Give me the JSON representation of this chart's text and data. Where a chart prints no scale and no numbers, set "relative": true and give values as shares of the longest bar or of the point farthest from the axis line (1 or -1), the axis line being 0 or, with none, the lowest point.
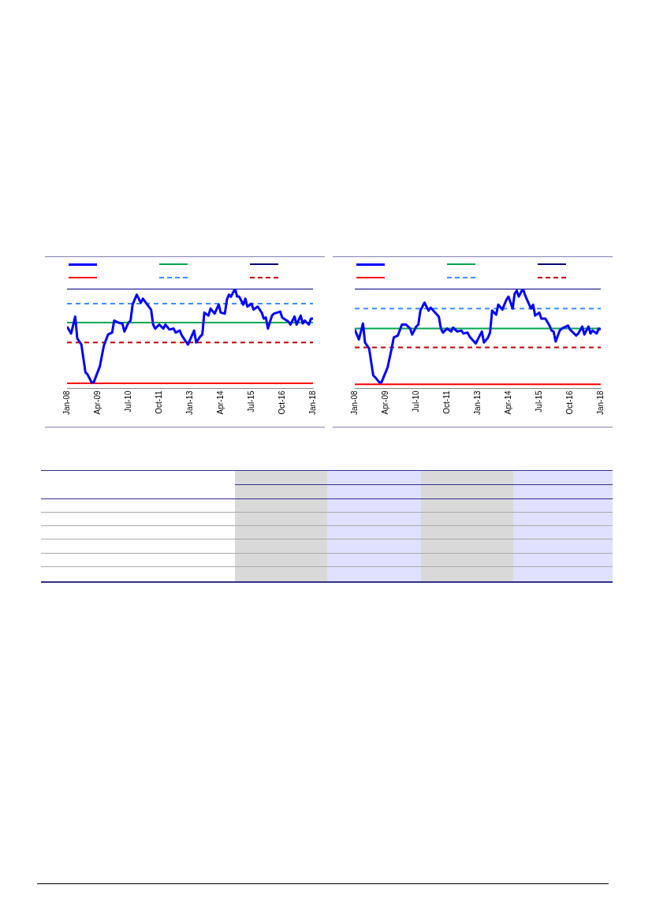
{
  "chart_data": [
    {
      "type": "line",
      "relative": true,
      "grid": false,
      "marker": "none",
      "xlim": [
        "2008-01",
        "2018-01"
      ],
      "xticks": [
        {
          "value": "2008-01",
          "label": "Jan-08"
        },
        {
          "value": "2009-04",
          "label": "Apr-09"
        },
        {
          "value": "2010-07",
          "label": "Jul-10"
        },
        {
          "value": "2011-10",
          "label": "Oct-11"
        },
        {
          "value": "2013-01",
          "label": "Jan-13"
        },
        {
          "value": "2014-04",
          "label": "Apr-14"
        },
        {
          "value": "2015-07",
          "label": "Jul-15"
        },
        {
          "value": "2016-10",
          "label": "Oct-16"
        },
        {
          "value": "2018-01",
          "label": "Jan-18"
        }
      ],
      "series": [
        {
          "color": "#0000ff",
          "line_style": "solid",
          "x": [
            "2008-01",
            "2008-03",
            "2008-05",
            "2008-06",
            "2008-08",
            "2008-10",
            "2008-11",
            "2009-01",
            "2009-02",
            "2009-05",
            "2009-07",
            "2009-09",
            "2009-11",
            "2009-12",
            "2010-02",
            "2010-04",
            "2010-05",
            "2010-07",
            "2010-08",
            "2010-09",
            "2010-11",
            "2011-01",
            "2011-02",
            "2011-06",
            "2011-07",
            "2011-08",
            "2011-10",
            "2011-12",
            "2012-01",
            "2012-03",
            "2012-05",
            "2012-06",
            "2012-08",
            "2012-09",
            "2012-12",
            "2013-03",
            "2013-04",
            "2013-06",
            "2013-07",
            "2013-08",
            "2013-10",
            "2013-11",
            "2014-01",
            "2014-03",
            "2014-04",
            "2014-06",
            "2014-07",
            "2014-08",
            "2014-09",
            "2014-11",
            "2014-12",
            "2015-01",
            "2015-03",
            "2015-04",
            "2015-05",
            "2015-07",
            "2015-08",
            "2015-10",
            "2015-12",
            "2016-01",
            "2016-02",
            "2016-03",
            "2016-05",
            "2016-06",
            "2016-09",
            "2016-10",
            "2017-01",
            "2017-02",
            "2017-04",
            "2017-05",
            "2017-07",
            "2017-08",
            "2017-09",
            "2017-11",
            "2017-12",
            "2018-01"
          ],
          "values": [
            0.62,
            0.55,
            0.72,
            0.5,
            0.44,
            0.16,
            0.14,
            0.06,
            0.06,
            0.22,
            0.43,
            0.54,
            0.56,
            0.68,
            0.66,
            0.65,
            0.57,
            0.66,
            0.68,
            0.84,
            0.94,
            0.86,
            0.9,
            0.79,
            0.64,
            0.6,
            0.64,
            0.6,
            0.64,
            0.59,
            0.6,
            0.56,
            0.58,
            0.53,
            0.44,
            0.58,
            0.46,
            0.52,
            0.54,
            0.76,
            0.73,
            0.8,
            0.75,
            0.84,
            0.76,
            0.75,
            0.89,
            0.94,
            0.92,
            1.0,
            0.92,
            0.92,
            0.84,
            0.9,
            0.82,
            0.85,
            0.79,
            0.82,
            0.76,
            0.7,
            0.71,
            0.6,
            0.73,
            0.75,
            0.77,
            0.71,
            0.67,
            0.64,
            0.72,
            0.64,
            0.73,
            0.65,
            0.68,
            0.64,
            0.7,
            0.7
          ]
        },
        {
          "color": "#00a650",
          "line_style": "solid",
          "x": [
            "2008-01",
            "2018-01"
          ],
          "values": [
            0.66,
            0.66
          ]
        },
        {
          "color": "#000080",
          "line_style": "solid",
          "x": [
            "2008-01",
            "2018-01"
          ],
          "values": [
            1.0,
            1.0
          ]
        },
        {
          "color": "#ff0000",
          "line_style": "solid",
          "x": [
            "2008-01",
            "2018-01"
          ],
          "values": [
            0.05,
            0.05
          ]
        },
        {
          "color": "#3b8eff",
          "line_style": "dashed",
          "x": [
            "2008-01",
            "2018-01"
          ],
          "values": [
            0.85,
            0.85
          ]
        },
        {
          "color": "#c00000",
          "line_style": "dashed",
          "x": [
            "2008-01",
            "2018-01"
          ],
          "values": [
            0.46,
            0.46
          ]
        }
      ]
    },
    {
      "type": "line",
      "relative": true,
      "grid": false,
      "marker": "none",
      "xlim": [
        "2008-01",
        "2018-01"
      ],
      "xticks": [
        {
          "value": "2008-01",
          "label": "Jan-08"
        },
        {
          "value": "2009-04",
          "label": "Apr-09"
        },
        {
          "value": "2010-07",
          "label": "Jul-10"
        },
        {
          "value": "2011-10",
          "label": "Oct-11"
        },
        {
          "value": "2013-01",
          "label": "Jan-13"
        },
        {
          "value": "2014-04",
          "label": "Apr-14"
        },
        {
          "value": "2015-07",
          "label": "Jul-15"
        },
        {
          "value": "2016-10",
          "label": "Oct-16"
        },
        {
          "value": "2018-01",
          "label": "Jan-18"
        }
      ],
      "series": [
        {
          "color": "#0000ff",
          "line_style": "solid",
          "x": [
            "2008-01",
            "2008-03",
            "2008-05",
            "2008-06",
            "2008-08",
            "2008-10",
            "2008-11",
            "2009-01",
            "2009-02",
            "2009-05",
            "2009-07",
            "2009-08",
            "2009-10",
            "2009-12",
            "2010-02",
            "2010-04",
            "2010-05",
            "2010-07",
            "2010-08",
            "2010-09",
            "2010-11",
            "2011-01",
            "2011-02",
            "2011-06",
            "2011-07",
            "2011-08",
            "2011-10",
            "2011-12",
            "2012-01",
            "2012-03",
            "2012-05",
            "2012-06",
            "2012-08",
            "2012-09",
            "2012-12",
            "2013-03",
            "2013-04",
            "2013-06",
            "2013-07",
            "2013-08",
            "2013-10",
            "2013-11",
            "2014-01",
            "2014-03",
            "2014-04",
            "2014-06",
            "2014-07",
            "2014-08",
            "2014-09",
            "2014-11",
            "2014-12",
            "2015-01",
            "2015-03",
            "2015-04",
            "2015-05",
            "2015-07",
            "2015-08",
            "2015-10",
            "2015-12",
            "2016-01",
            "2016-02",
            "2016-03",
            "2016-05",
            "2016-06",
            "2016-09",
            "2016-10",
            "2017-01",
            "2017-02",
            "2017-04",
            "2017-05",
            "2017-07",
            "2017-08",
            "2017-09",
            "2017-11",
            "2017-12",
            "2018-01"
          ],
          "values": [
            0.59,
            0.49,
            0.65,
            0.46,
            0.4,
            0.13,
            0.11,
            0.06,
            0.06,
            0.21,
            0.4,
            0.51,
            0.53,
            0.64,
            0.64,
            0.6,
            0.54,
            0.62,
            0.64,
            0.78,
            0.86,
            0.78,
            0.81,
            0.72,
            0.6,
            0.56,
            0.6,
            0.57,
            0.61,
            0.57,
            0.58,
            0.55,
            0.56,
            0.52,
            0.45,
            0.57,
            0.46,
            0.51,
            0.56,
            0.78,
            0.74,
            0.84,
            0.79,
            0.89,
            0.92,
            0.8,
            0.95,
            0.98,
            0.92,
            1.0,
            0.94,
            0.89,
            0.8,
            0.84,
            0.73,
            0.76,
            0.7,
            0.7,
            0.63,
            0.58,
            0.57,
            0.47,
            0.58,
            0.6,
            0.63,
            0.59,
            0.53,
            0.55,
            0.62,
            0.54,
            0.62,
            0.55,
            0.58,
            0.55,
            0.6,
            0.59
          ]
        },
        {
          "color": "#00a650",
          "line_style": "solid",
          "x": [
            "2008-01",
            "2018-01"
          ],
          "values": [
            0.6,
            0.6
          ]
        },
        {
          "color": "#000080",
          "line_style": "solid",
          "x": [
            "2008-01",
            "2018-01"
          ],
          "values": [
            1.0,
            1.0
          ]
        },
        {
          "color": "#ff0000",
          "line_style": "solid",
          "x": [
            "2008-01",
            "2018-01"
          ],
          "values": [
            0.04,
            0.04
          ]
        },
        {
          "color": "#3b8eff",
          "line_style": "dashed",
          "x": [
            "2008-01",
            "2018-01"
          ],
          "values": [
            0.8,
            0.8
          ]
        },
        {
          "color": "#c00000",
          "line_style": "dashed",
          "x": [
            "2008-01",
            "2018-01"
          ],
          "values": [
            0.41,
            0.41
          ]
        }
      ]
    }
  ]
}
